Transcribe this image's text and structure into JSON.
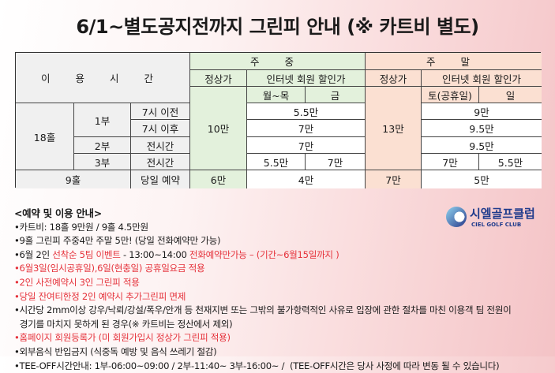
{
  "title": "6/1~별도공지전까지 그린피 안내 (※ 카트비 별도)",
  "table": {
    "usage_time": "이 용 시 간",
    "weekday": "주 중",
    "weekend": "주 말",
    "regular": "정상가",
    "internet": "인터넷 회원 할인가",
    "mon_thu": "월~목",
    "fri": "금",
    "sat": "토(공휴일)",
    "sun": "일",
    "h18": "18홀",
    "p1": "1부",
    "p2": "2부",
    "p3": "3부",
    "before7": "7시 이전",
    "after7": "7시 이후",
    "all": "전시간",
    "all3": "전시간",
    "h9": "9홀",
    "sameday": "당일 예약",
    "wd_regular": "10만",
    "we_regular": "13만",
    "wd_r1": "5.5만",
    "wd_r2": "7만",
    "wd_r3": "7만",
    "wd_r4_mt": "5.5만",
    "wd_r4_f": "7만",
    "we_r1": "9만",
    "we_r2": "9.5만",
    "we_r3": "9.5만",
    "we_r4_sat": "7만",
    "we_r4_sun": "5.5만",
    "h9_wd_regular": "6만",
    "h9_wd_net": "4만",
    "h9_we_regular": "7만",
    "h9_we_net": "5만"
  },
  "logo": {
    "name": "시엘골프클럽",
    "sub": "CIEL GOLF CLUB"
  },
  "notes": {
    "heading": "<예약 및 이용 안내>",
    "items": [
      [
        {
          "t": "•카트비: 18홀 9만원 / 9홀 4.5만원"
        }
      ],
      [
        {
          "t": "•9홀 그린피 주중4만 주말 5만! (당일 전화예약만 가능)"
        }
      ],
      [
        {
          "t": "•6월 2인 "
        },
        {
          "t": "선착순 5팀 이벤트",
          "red": true
        },
        {
          "t": " - 13:00~14:00 "
        },
        {
          "t": "전화예약만가능 – (기간~6월15일까지 )",
          "red": true
        }
      ],
      [
        {
          "t": "•6월3일(임시공휴일),6일(현충일) 공휴일요금 적용",
          "red": true
        }
      ],
      [
        {
          "t": "•2인 사전예약시 3인 그린피 적용",
          "red": true
        }
      ],
      [
        {
          "t": "•당일 잔여티한정 2인 예약시 추가그린피 면제",
          "red": true
        }
      ],
      [
        {
          "t": "•시간당 2mm이상 강우/낙뢰/강설/폭우/안개 등 천재지변 또는 그밖의 불가항력적인 사유로 입장에 관한 절차를 마친 이용객 팀 전원이"
        }
      ],
      [
        {
          "t": "  경기를 마치지 못하게 된 경우(※ 카트비는 정산에서 제외)"
        }
      ],
      [
        {
          "t": "•홈페이지 회원등록가 (미 회원가입시 정상가 그린피 적용)",
          "red": true
        }
      ],
      [
        {
          "t": "•외부음식 반입금지 (식중독 예방 및 음식 쓰레기 절감)"
        }
      ],
      [
        {
          "t": "•TEE-OFF시간안내: 1부-06:00~09:00 / 2부-11:40~ 3부-16:00~ /  (TEE-OFF시간은 당사 사정에 따라 변동 될 수 있습니다)"
        }
      ]
    ]
  },
  "colors": {
    "weekday": "#e3f1dc",
    "weekend": "#fbe0d2",
    "red": "#e5323b"
  }
}
